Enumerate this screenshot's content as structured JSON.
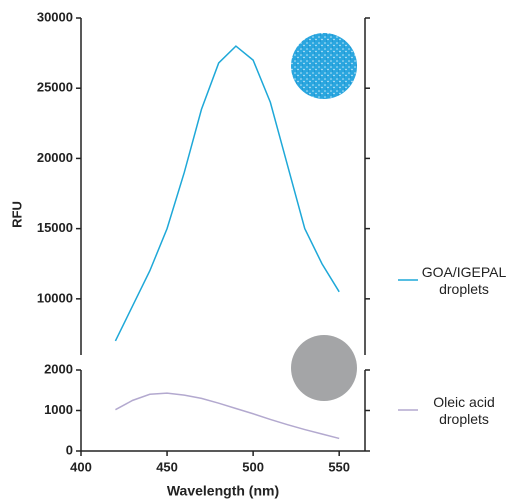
{
  "chart_data": [
    {
      "type": "line",
      "y_label": "RFU",
      "x": [
        420,
        430,
        440,
        450,
        460,
        470,
        480,
        490,
        500,
        510,
        520,
        530,
        540,
        550
      ],
      "series": [
        {
          "name": "GOA/IGEPAL droplets",
          "color": "#1ea8d8",
          "values": [
            7000,
            9500,
            12000,
            15000,
            19000,
            23500,
            26800,
            28000,
            27000,
            24000,
            19500,
            15000,
            12500,
            10500
          ]
        }
      ],
      "xlim": [
        400,
        565
      ],
      "ylim": [
        6000,
        30000
      ],
      "yticks": [
        10000,
        15000,
        20000,
        25000,
        30000
      ]
    },
    {
      "type": "line",
      "x_label": "Wavelength (nm)",
      "x": [
        420,
        430,
        440,
        450,
        460,
        470,
        480,
        490,
        500,
        510,
        520,
        530,
        540,
        550
      ],
      "series": [
        {
          "name": "Oleic acid droplets",
          "color": "#b3a9cf",
          "values": [
            1020,
            1250,
            1400,
            1430,
            1380,
            1300,
            1180,
            1050,
            920,
            780,
            650,
            530,
            420,
            310
          ]
        }
      ],
      "xlim": [
        400,
        565
      ],
      "ylim": [
        0,
        2000
      ],
      "yticks": [
        0,
        1000,
        2000
      ],
      "xticks": [
        400,
        450,
        500,
        550
      ]
    }
  ]
}
